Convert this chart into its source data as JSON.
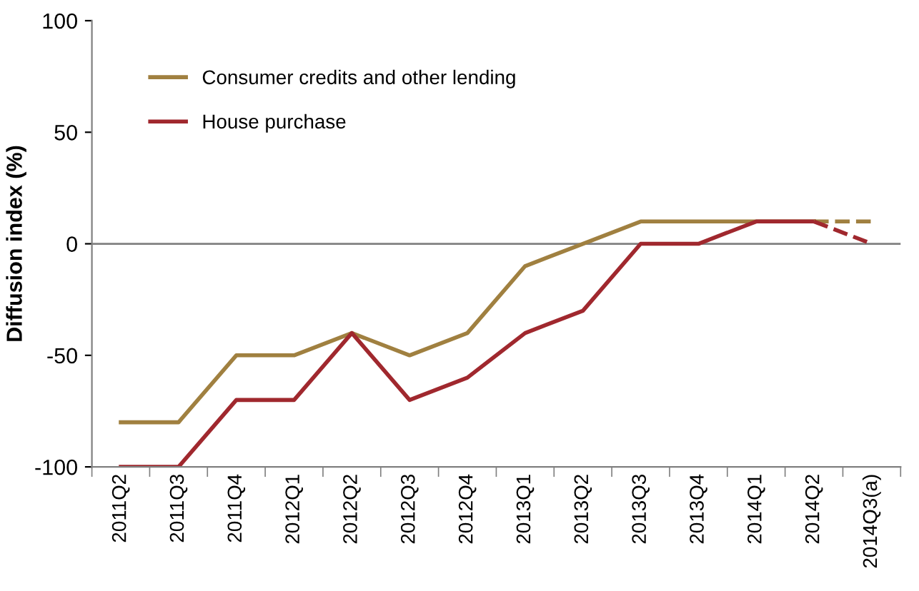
{
  "chart_data": {
    "type": "line",
    "ylabel": "Diffusion index (%)",
    "categories": [
      "2011Q2",
      "2011Q3",
      "2011Q4",
      "2012Q1",
      "2012Q2",
      "2012Q3",
      "2012Q4",
      "2013Q1",
      "2013Q2",
      "2013Q3",
      "2013Q4",
      "2014Q1",
      "2014Q2",
      "2014Q3(a)"
    ],
    "series": [
      {
        "name": "Consumer credits and other lending",
        "color": "#a08040",
        "line_style": "solid",
        "values": [
          -80,
          -80,
          -50,
          -50,
          -40,
          -50,
          -40,
          -10,
          0,
          10,
          10,
          10,
          10,
          null
        ]
      },
      {
        "name": "House purchase",
        "color": "#a0282e",
        "line_style": "solid",
        "values": [
          -100,
          -100,
          -70,
          -70,
          -40,
          -70,
          -60,
          -40,
          -30,
          0,
          0,
          10,
          10,
          null
        ]
      },
      {
        "color": "#a08040",
        "line_style": "dashed",
        "values": [
          null,
          null,
          null,
          null,
          null,
          null,
          null,
          null,
          null,
          null,
          null,
          null,
          10,
          10
        ]
      },
      {
        "color": "#a0282e",
        "line_style": "dashed",
        "values": [
          null,
          null,
          null,
          null,
          null,
          null,
          null,
          null,
          null,
          null,
          null,
          null,
          10,
          0
        ]
      }
    ],
    "ylim": [
      -100,
      100
    ],
    "yticks": [
      -100,
      -50,
      0,
      50,
      100
    ],
    "ref_lines": [
      {
        "axis": "y",
        "value": 0,
        "color": "#808080"
      }
    ],
    "grid": false,
    "legend": "top left",
    "marker": "none"
  }
}
